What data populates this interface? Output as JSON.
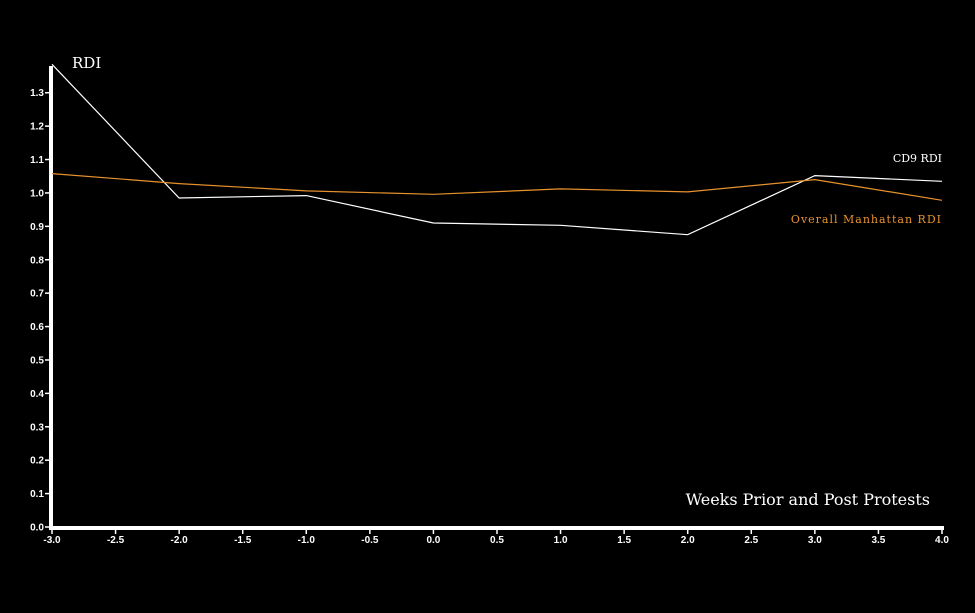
{
  "chart_data": {
    "type": "line",
    "ylabel": "RDI",
    "xlabel": "Weeks Prior and Post Protests",
    "xlim": [
      -3.0,
      4.0
    ],
    "ylim": [
      0.0,
      1.38
    ],
    "x_ticks": [
      "-3.0",
      "-2.5",
      "-2.0",
      "-1.5",
      "-1.0",
      "-0.5",
      "0.0",
      "0.5",
      "1.0",
      "1.5",
      "2.0",
      "2.5",
      "3.0",
      "3.5",
      "4.0"
    ],
    "y_ticks": [
      "0.0",
      "0.1",
      "0.2",
      "0.3",
      "0.4",
      "0.5",
      "0.6",
      "0.7",
      "0.8",
      "0.9",
      "1.0",
      "1.1",
      "1.2",
      "1.3"
    ],
    "grid": false,
    "series": [
      {
        "name": "CD9 RDI",
        "color": "#ffffff",
        "x": [
          -3,
          -2,
          -1,
          0,
          1,
          2,
          3,
          4
        ],
        "values": [
          1.385,
          0.985,
          0.992,
          0.91,
          0.903,
          0.875,
          1.052,
          1.035
        ]
      },
      {
        "name": "Overall Manhattan RDI",
        "color": "#e8922e",
        "x": [
          -3,
          -2,
          -1,
          0,
          1,
          2,
          3,
          4
        ],
        "values": [
          1.058,
          1.028,
          1.006,
          0.996,
          1.012,
          1.003,
          1.04,
          0.978
        ]
      }
    ]
  }
}
